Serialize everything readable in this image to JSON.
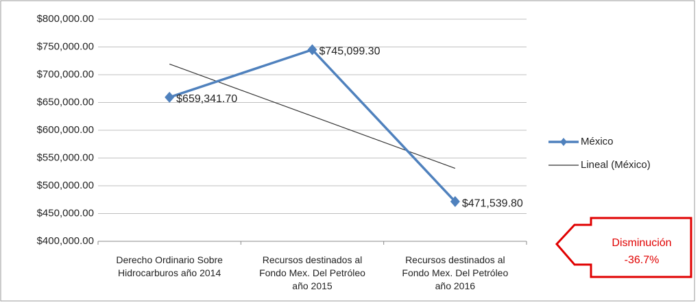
{
  "chart_data": {
    "type": "line",
    "categories": [
      "Derecho Ordinario Sobre Hidrocarburos año 2014",
      "Recursos destinados al Fondo Mex. Del Petróleo año 2015",
      "Recursos destinados al Fondo Mex. Del Petróleo año 2016"
    ],
    "series": [
      {
        "name": "México",
        "color": "#4f81bd",
        "values": [
          659341.7,
          745099.3,
          471539.8
        ],
        "value_labels": [
          "$659,341.70",
          "$745,099.30",
          "$471,539.80"
        ]
      },
      {
        "name": "Lineal (México)",
        "color": "#333333",
        "values": [
          719227.9,
          625326.9,
          531426.0
        ]
      }
    ],
    "ylim": [
      400000,
      800000
    ],
    "yticks": [
      {
        "value": 400000,
        "label": "$400,000.00"
      },
      {
        "value": 450000,
        "label": "$450,000.00"
      },
      {
        "value": 500000,
        "label": "$500,000.00"
      },
      {
        "value": 550000,
        "label": "$550,000.00"
      },
      {
        "value": 600000,
        "label": "$600,000.00"
      },
      {
        "value": 650000,
        "label": "$650,000.00"
      },
      {
        "value": 700000,
        "label": "$700,000.00"
      },
      {
        "value": 750000,
        "label": "$750,000.00"
      },
      {
        "value": 800000,
        "label": "$800,000.00"
      }
    ],
    "grid": true,
    "legend": "right",
    "annotations": [
      "Disminución",
      "-36.7%"
    ]
  }
}
